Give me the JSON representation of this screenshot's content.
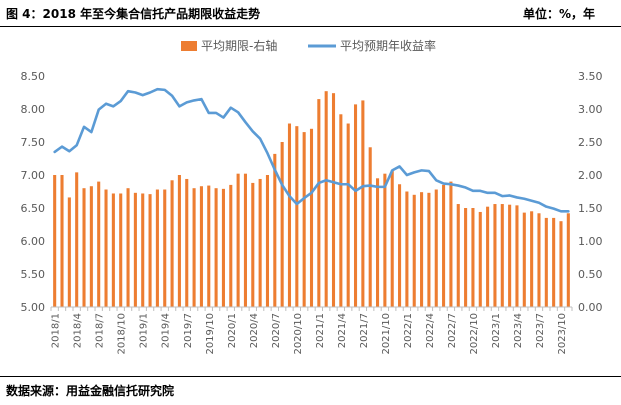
{
  "header": {
    "title": "图 4：2018 年至今集合信托产品期限收益走势",
    "unit": "单位：%，年"
  },
  "source": "数据来源：用益金融信托研究院",
  "colors": {
    "bar": "#ED7D31",
    "line": "#5B9BD5",
    "axis": "#bfbfbf",
    "text": "#595959"
  },
  "chart_data": {
    "type": "bar+line",
    "title": "",
    "legend": {
      "placement": "top-center",
      "items": [
        "平均期限-右轴",
        "平均预期年收益率"
      ]
    },
    "grid": false,
    "x_tick_labels": [
      "2018/1",
      "2018/4",
      "2018/7",
      "2018/10",
      "2019/1",
      "2019/4",
      "2019/7",
      "2019/10",
      "2020/1",
      "2020/4",
      "2020/7",
      "2020/10",
      "2021/1",
      "2021/4",
      "2021/7",
      "2021/10",
      "2022/1",
      "2022/4",
      "2022/7",
      "2022/10",
      "2023/1",
      "2023/4",
      "2023/7",
      "2023/10"
    ],
    "x_tick_every": 3,
    "y_left": {
      "min": 5.0,
      "max": 8.5,
      "step": 0.5,
      "ticks": [
        "5.00",
        "5.50",
        "6.00",
        "6.50",
        "7.00",
        "7.50",
        "8.00",
        "8.50"
      ]
    },
    "y_right": {
      "min": 0.0,
      "max": 3.5,
      "step": 0.5,
      "ticks": [
        "0.00",
        "0.50",
        "1.00",
        "1.50",
        "2.00",
        "2.50",
        "3.00",
        "3.50"
      ]
    },
    "months": [
      "2018/1",
      "2018/2",
      "2018/3",
      "2018/4",
      "2018/5",
      "2018/6",
      "2018/7",
      "2018/8",
      "2018/9",
      "2018/10",
      "2018/11",
      "2018/12",
      "2019/1",
      "2019/2",
      "2019/3",
      "2019/4",
      "2019/5",
      "2019/6",
      "2019/7",
      "2019/8",
      "2019/9",
      "2019/10",
      "2019/11",
      "2019/12",
      "2020/1",
      "2020/2",
      "2020/3",
      "2020/4",
      "2020/5",
      "2020/6",
      "2020/7",
      "2020/8",
      "2020/9",
      "2020/10",
      "2020/11",
      "2020/12",
      "2021/1",
      "2021/2",
      "2021/3",
      "2021/4",
      "2021/5",
      "2021/6",
      "2021/7",
      "2021/8",
      "2021/9",
      "2021/10",
      "2021/11",
      "2021/12",
      "2022/1",
      "2022/2",
      "2022/3",
      "2022/4",
      "2022/5",
      "2022/6",
      "2022/7",
      "2022/8",
      "2022/9",
      "2022/10",
      "2022/11",
      "2022/12",
      "2023/1",
      "2023/2",
      "2023/3",
      "2023/4",
      "2023/5",
      "2023/6",
      "2023/7",
      "2023/8",
      "2023/9",
      "2023/10",
      "2023/11"
    ],
    "series": [
      {
        "name": "平均期限-右轴",
        "type": "bar",
        "axis": "right",
        "values": [
          2.0,
          2.0,
          1.66,
          2.04,
          1.8,
          1.83,
          1.9,
          1.78,
          1.72,
          1.72,
          1.8,
          1.73,
          1.72,
          1.71,
          1.78,
          1.78,
          1.92,
          2.0,
          1.94,
          1.8,
          1.83,
          1.84,
          1.8,
          1.79,
          1.85,
          2.02,
          2.02,
          1.88,
          1.94,
          2.0,
          2.32,
          2.5,
          2.78,
          2.74,
          2.65,
          2.7,
          3.15,
          3.27,
          3.24,
          2.92,
          2.78,
          3.07,
          3.13,
          2.42,
          1.95,
          2.02,
          2.07,
          1.86,
          1.75,
          1.7,
          1.74,
          1.73,
          1.78,
          1.85,
          1.9,
          1.56,
          1.5,
          1.5,
          1.44,
          1.52,
          1.56,
          1.56,
          1.55,
          1.54,
          1.43,
          1.45,
          1.42,
          1.35,
          1.35,
          1.3,
          1.42
        ]
      },
      {
        "name": "平均预期年收益率",
        "type": "line",
        "axis": "left",
        "values": [
          7.35,
          7.43,
          7.36,
          7.45,
          7.73,
          7.65,
          7.99,
          8.08,
          8.04,
          8.12,
          8.27,
          8.25,
          8.21,
          8.25,
          8.3,
          8.29,
          8.2,
          8.04,
          8.1,
          8.13,
          8.15,
          7.94,
          7.94,
          7.87,
          8.02,
          7.95,
          7.8,
          7.66,
          7.55,
          7.33,
          7.08,
          6.85,
          6.68,
          6.56,
          6.65,
          6.73,
          6.88,
          6.92,
          6.89,
          6.86,
          6.86,
          6.76,
          6.83,
          6.84,
          6.82,
          6.82,
          7.07,
          7.13,
          7.0,
          7.04,
          7.07,
          7.06,
          6.92,
          6.87,
          6.86,
          6.84,
          6.81,
          6.76,
          6.76,
          6.73,
          6.73,
          6.68,
          6.69,
          6.66,
          6.64,
          6.61,
          6.58,
          6.52,
          6.49,
          6.45,
          6.45
        ]
      }
    ]
  }
}
